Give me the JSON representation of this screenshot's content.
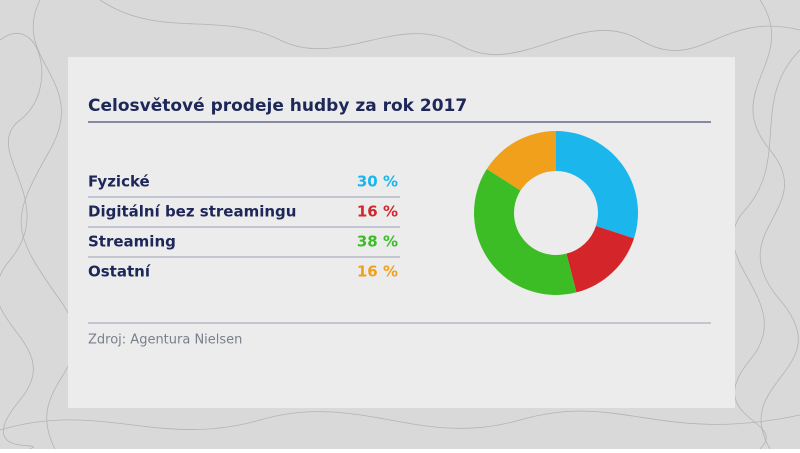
{
  "chart_data": {
    "type": "pie",
    "title": "Celosvětové prodeje hudby za rok 2017",
    "categories": [
      "Fyzické",
      "Digitální bez streamingu",
      "Streaming",
      "Ostatní"
    ],
    "values": [
      30,
      16,
      38,
      16
    ],
    "value_labels": [
      "30 %",
      "16 %",
      "38 %",
      "16 %"
    ],
    "colors": [
      "#1ab6ec",
      "#d4262a",
      "#3cbd25",
      "#f0a01a"
    ],
    "source": "Zdroj: Agentura Nielsen"
  }
}
